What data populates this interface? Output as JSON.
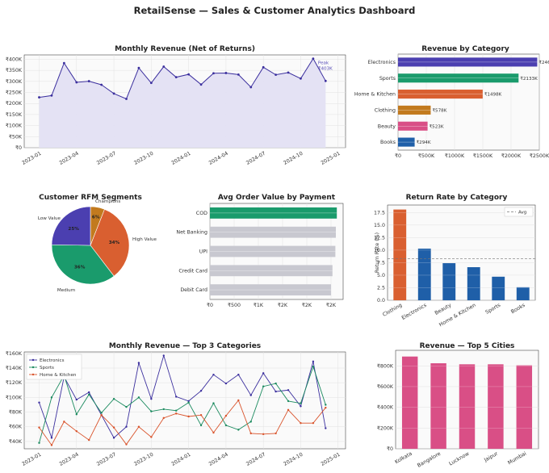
{
  "page_title": "RetailSense — Sales & Customer Analytics Dashboard",
  "chart_data": [
    {
      "id": "monthly_revenue",
      "type": "area",
      "title": "Monthly Revenue (Net of Returns)",
      "x": [
        "2023-01",
        "2023-02",
        "2023-03",
        "2023-04",
        "2023-05",
        "2023-06",
        "2023-07",
        "2023-08",
        "2023-09",
        "2023-10",
        "2023-11",
        "2023-12",
        "2024-01",
        "2024-02",
        "2024-03",
        "2024-04",
        "2024-05",
        "2024-06",
        "2024-07",
        "2024-08",
        "2024-09",
        "2024-10",
        "2024-11",
        "2024-12"
      ],
      "values": [
        228,
        236,
        383,
        296,
        301,
        285,
        245,
        221,
        361,
        293,
        367,
        319,
        332,
        286,
        337,
        338,
        331,
        274,
        364,
        330,
        340,
        313,
        403,
        302
      ],
      "x_tick_labels": [
        "2023-01",
        "2023-04",
        "2023-07",
        "2023-10",
        "2024-01",
        "2024-04",
        "2024-07",
        "2024-10",
        "2025-01"
      ],
      "y_tick_labels": [
        "₹0",
        "₹50K",
        "₹100K",
        "₹150K",
        "₹200K",
        "₹250K",
        "₹300K",
        "₹350K",
        "₹400K"
      ],
      "ylim": [
        0,
        420
      ],
      "unit": "₹K",
      "annotation": {
        "line1": "Peak",
        "line2": "₹403K",
        "x": "2024-11"
      },
      "colors": {
        "line": "#3b2f9e",
        "fill": "#e3e0f3"
      }
    },
    {
      "id": "revenue_by_category",
      "type": "bar",
      "orientation": "horizontal",
      "title": "Revenue by Category",
      "categories": [
        "Electronics",
        "Sports",
        "Home & Kitchen",
        "Clothing",
        "Beauty",
        "Books"
      ],
      "values": [
        2463,
        2133,
        1498,
        578,
        523,
        294
      ],
      "value_labels": [
        "₹2463K",
        "₹2133K",
        "₹1498K",
        "₹578K",
        "₹523K",
        "₹294K"
      ],
      "x_tick_labels": [
        "₹0",
        "₹500K",
        "₹1000K",
        "₹1500K",
        "₹2000K",
        "₹2500K"
      ],
      "xlim": [
        0,
        2500
      ],
      "colors": [
        "#4b3fb0",
        "#1a9b6c",
        "#d95f30",
        "#c27a1e",
        "#d94f86",
        "#1f5fa8"
      ]
    },
    {
      "id": "rfm_segments",
      "type": "pie",
      "title": "Customer RFM Segments",
      "labels": [
        "Champions",
        "High Value",
        "Medium",
        "Low Value"
      ],
      "values": [
        6,
        34,
        36,
        25
      ],
      "pct_labels": [
        "6%",
        "34%",
        "36%",
        "25%"
      ],
      "colors": [
        "#c27a1e",
        "#d95f30",
        "#1a9b6c",
        "#4b3fb0"
      ]
    },
    {
      "id": "aov_by_payment",
      "type": "bar",
      "orientation": "horizontal",
      "title": "Avg Order Value by Payment",
      "categories": [
        "COD",
        "Net Banking",
        "UPI",
        "Credit Card",
        "Debit Card"
      ],
      "values": [
        2620,
        2600,
        2590,
        2530,
        2500
      ],
      "x_tick_labels": [
        "₹0",
        "₹500",
        "₹1K",
        "₹2K",
        "₹2K",
        "₹2K"
      ],
      "xlim": [
        0,
        2750
      ],
      "colors": {
        "highlight": "#1a9b6c",
        "others": "#c8c8d0"
      }
    },
    {
      "id": "return_rate",
      "type": "bar",
      "title": "Return Rate by Category",
      "categories": [
        "Clothing",
        "Electronics",
        "Beauty",
        "Home & Kitchen",
        "Sports",
        "Books"
      ],
      "values": [
        18.1,
        10.3,
        7.4,
        6.6,
        4.7,
        2.6
      ],
      "avg": 8.3,
      "legend": "Avg",
      "ylabel": "Return Rate (%)",
      "y_tick_labels": [
        "0.0",
        "2.5",
        "5.0",
        "7.5",
        "10.0",
        "12.5",
        "15.0",
        "17.5"
      ],
      "ylim": [
        0,
        19
      ],
      "colors": {
        "highlight": "#d95f30",
        "others": "#1f5fa8"
      }
    },
    {
      "id": "top3_monthly",
      "type": "line",
      "title": "Monthly Revenue — Top 3 Categories",
      "x": [
        "2023-01",
        "2023-02",
        "2023-03",
        "2023-04",
        "2023-05",
        "2023-06",
        "2023-07",
        "2023-08",
        "2023-09",
        "2023-10",
        "2023-11",
        "2023-12",
        "2024-01",
        "2024-02",
        "2024-03",
        "2024-04",
        "2024-05",
        "2024-06",
        "2024-07",
        "2024-08",
        "2024-09",
        "2024-10",
        "2024-11",
        "2024-12"
      ],
      "series": [
        {
          "name": "Electronics",
          "color": "#3b2f9e",
          "values": [
            93,
            45,
            128,
            97,
            107,
            76,
            45,
            60,
            147,
            98,
            157,
            101,
            95,
            109,
            131,
            119,
            131,
            103,
            133,
            108,
            110,
            88,
            149,
            58
          ]
        },
        {
          "name": "Sports",
          "color": "#1a8a5e",
          "values": [
            38,
            100,
            130,
            77,
            104,
            79,
            98,
            87,
            100,
            81,
            84,
            82,
            93,
            62,
            92,
            62,
            56,
            67,
            115,
            119,
            95,
            92,
            142,
            90
          ]
        },
        {
          "name": "Home & Kitchen",
          "color": "#d9532b",
          "values": [
            59,
            35,
            67,
            54,
            42,
            76,
            59,
            36,
            60,
            46,
            72,
            78,
            74,
            76,
            52,
            75,
            96,
            51,
            50,
            51,
            83,
            65,
            65,
            86
          ]
        }
      ],
      "x_tick_labels": [
        "2023-01",
        "2023-04",
        "2023-07",
        "2023-10",
        "2024-01",
        "2024-04",
        "2024-07",
        "2024-10",
        "2025-01"
      ],
      "y_tick_labels": [
        "₹40K",
        "₹60K",
        "₹80K",
        "₹100K",
        "₹120K",
        "₹140K",
        "₹160K"
      ],
      "ylim": [
        30,
        162
      ]
    },
    {
      "id": "top5_cities",
      "type": "bar",
      "title": "Revenue — Top 5 Cities",
      "categories": [
        "Kolkata",
        "Bangalore",
        "Lucknow",
        "Jaipur",
        "Mumbai"
      ],
      "values": [
        890,
        825,
        815,
        815,
        805
      ],
      "y_tick_labels": [
        "₹0",
        "₹200K",
        "₹400K",
        "₹600K",
        "₹800K"
      ],
      "ylim": [
        0,
        950
      ],
      "unit": "₹K",
      "colors": {
        "bar": "#d94f86"
      }
    }
  ]
}
